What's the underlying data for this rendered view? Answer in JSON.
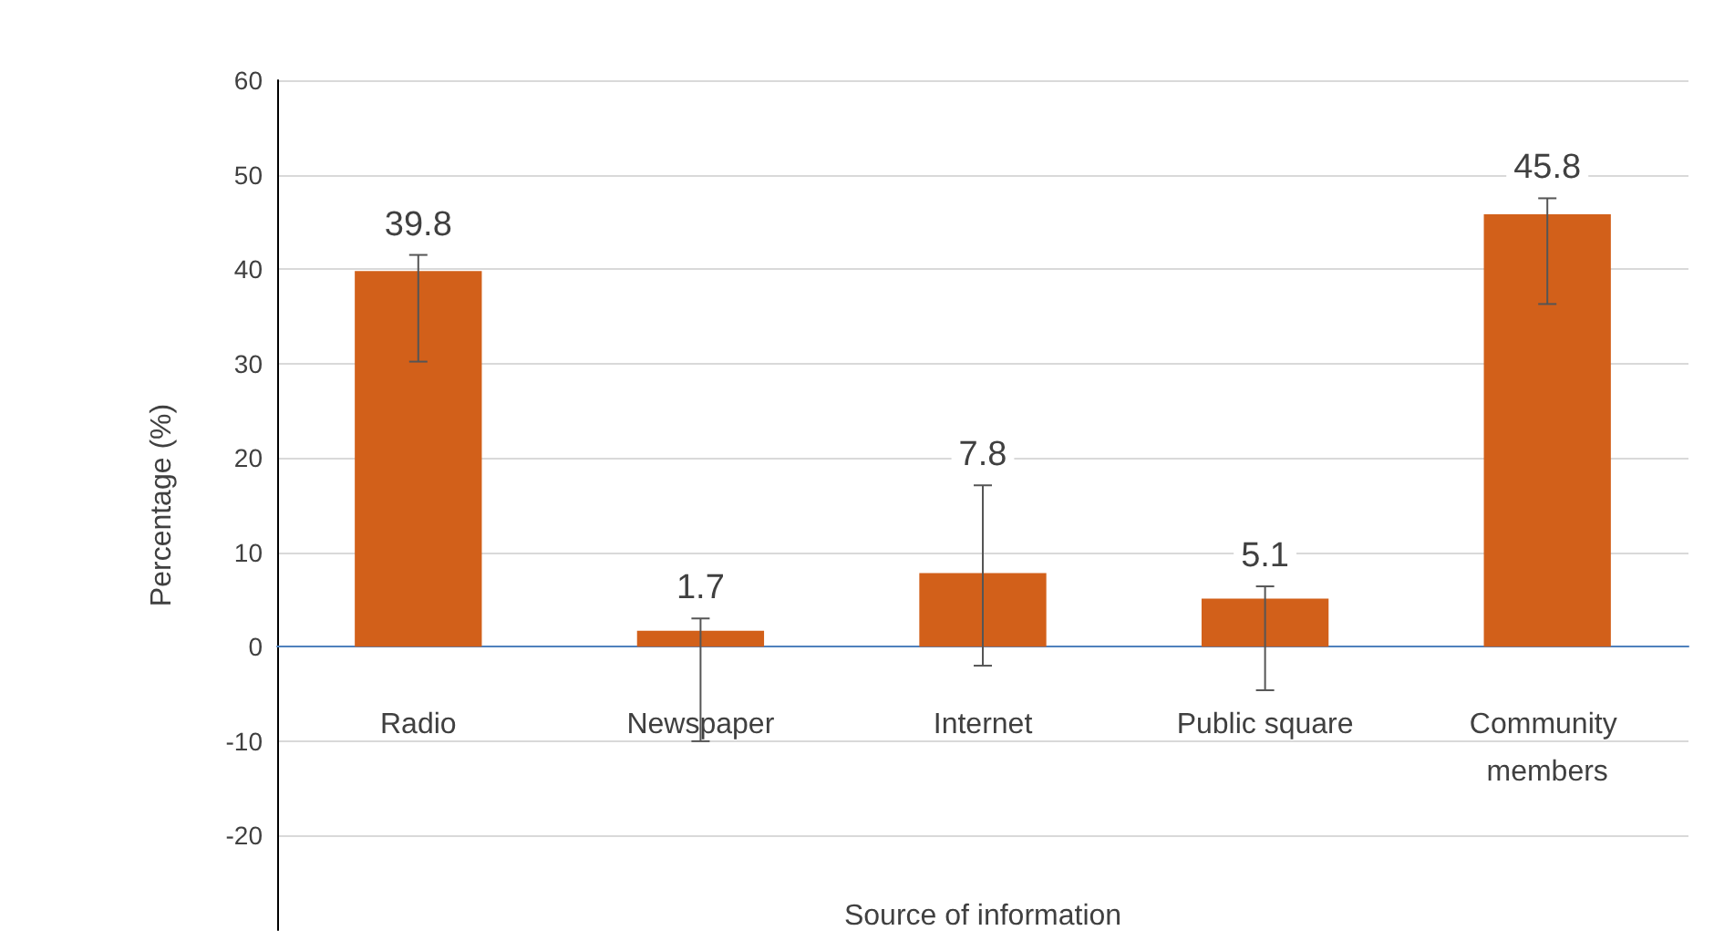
{
  "chart_data": {
    "type": "bar",
    "xlabel": "Source of information",
    "ylabel": "Percentage (%)",
    "categories": [
      "Radio",
      "Newspaper",
      "Internet",
      "Public square",
      "Community members"
    ],
    "values": [
      39.8,
      1.7,
      7.8,
      5.1,
      45.8
    ],
    "errors": [
      [
        30.2,
        41.5
      ],
      [
        -10,
        3
      ],
      [
        -2,
        17.1
      ],
      [
        -4.6,
        6.4
      ],
      [
        36.3,
        47.5
      ]
    ],
    "color": "#d2601a",
    "data_labels": true,
    "ylim": [
      -30,
      60
    ],
    "yticks": [
      -20,
      -10,
      0,
      10,
      20,
      30,
      40,
      50,
      60
    ],
    "grid": "y"
  }
}
